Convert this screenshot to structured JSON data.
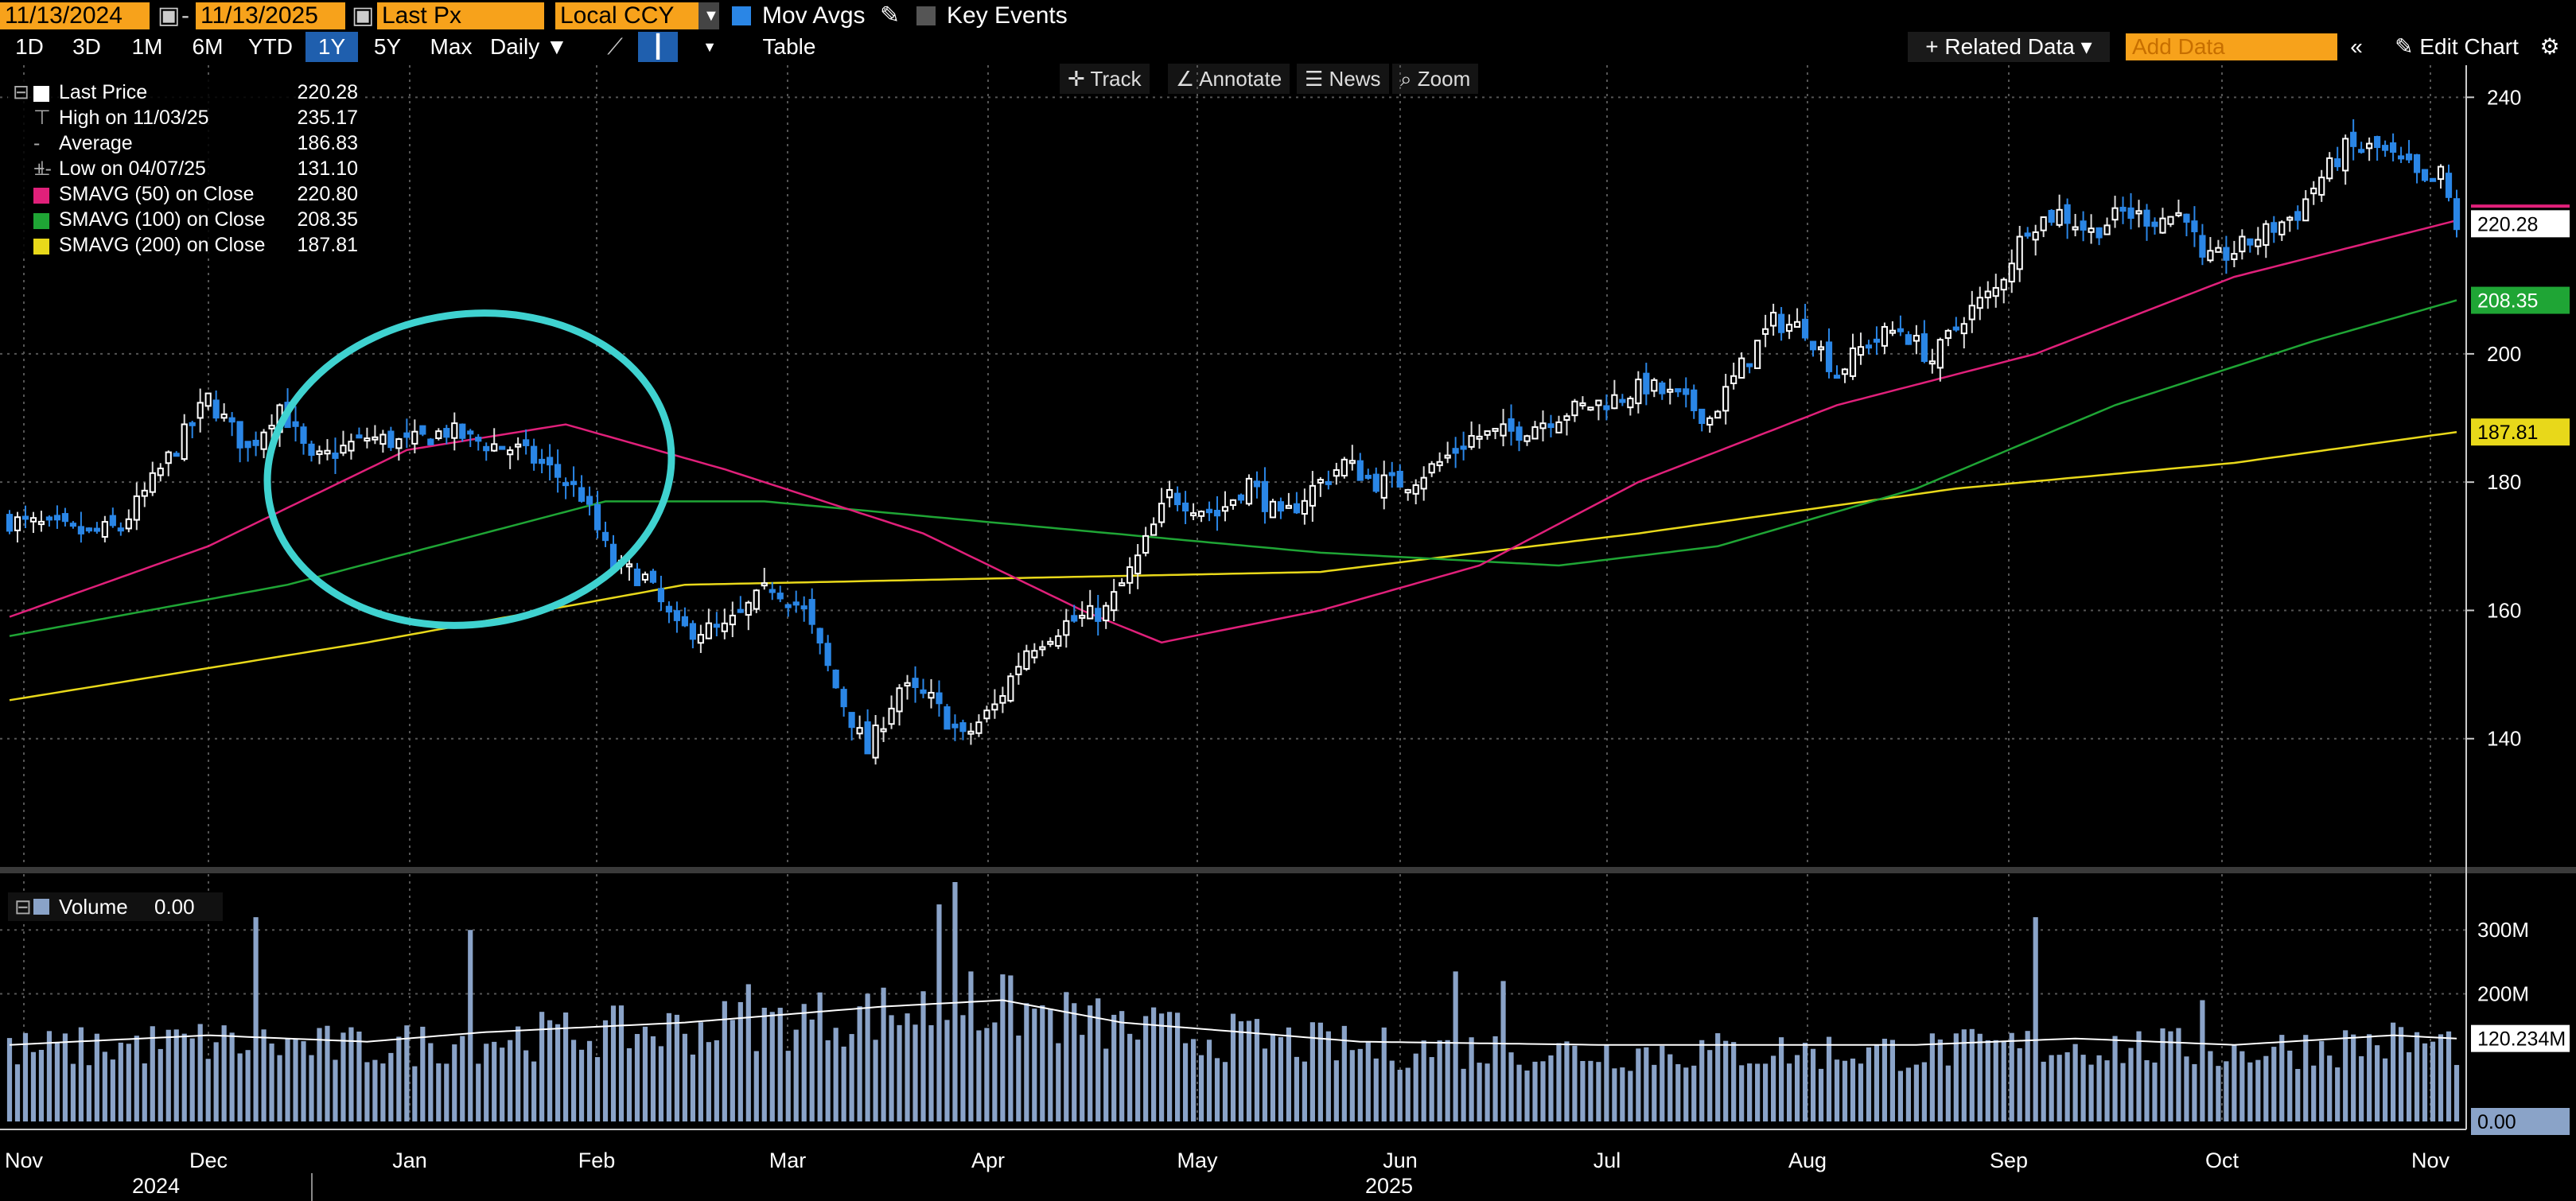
{
  "toolbar": {
    "start_date": "11/13/2024",
    "end_date": "11/13/2025",
    "date_sep": "-",
    "field": "Last Px",
    "currency": "Local CCY",
    "mov_avgs_label": "Mov Avgs",
    "key_events_label": "Key Events",
    "ranges": [
      "1D",
      "3D",
      "1M",
      "6M",
      "YTD",
      "1Y",
      "5Y",
      "Max"
    ],
    "active_range": "1Y",
    "period": "Daily",
    "table_label": "Table",
    "related_data_label": "+ Related Data",
    "add_data_placeholder": "Add Data",
    "edit_chart_label": "Edit Chart"
  },
  "chart_tools": {
    "track": "Track",
    "annotate": "Annotate",
    "news": "News",
    "zoom": "Zoom"
  },
  "legend": {
    "last_price_label": "Last Price",
    "last_price_value": "220.28",
    "high_label": "High on 11/03/25",
    "high_value": "235.17",
    "average_label": "Average",
    "average_value": "186.83",
    "low_label": "Low on 04/07/25",
    "low_value": "131.10",
    "sma50_label": "SMAVG (50)  on Close",
    "sma50_value": "220.80",
    "sma100_label": "SMAVG (100)  on Close",
    "sma100_value": "208.35",
    "sma200_label": "SMAVG (200)  on Close",
    "sma200_value": "187.81",
    "volume_label": "Volume",
    "volume_value": "0.00"
  },
  "colors": {
    "sma50": "#e0207a",
    "sma100": "#1fa535",
    "sma200": "#e8d81a",
    "up": "#ffffff",
    "down": "#2a86e6",
    "volume": "#8aa3c8",
    "annotation": "#3fd2d0"
  },
  "chart_data": {
    "type": "candlestick",
    "price_axis": {
      "ylim": [
        120,
        245
      ],
      "ticks": [
        140,
        160,
        180,
        200,
        240
      ]
    },
    "volume_axis": {
      "ylim": [
        0,
        380
      ],
      "unit": "M",
      "ticks": [
        "300M",
        "200M",
        "0.00"
      ]
    },
    "x_ticks": [
      "Nov",
      "Dec",
      "Jan",
      "Feb",
      "Mar",
      "Apr",
      "May",
      "Jun",
      "Jul",
      "Aug",
      "Sep",
      "Oct",
      "Nov"
    ],
    "year_labels": [
      "2024",
      "2025"
    ],
    "last_price_tag": "220.28",
    "sma100_tag": "208.35",
    "sma200_tag": "187.81",
    "volume_avg_tag": "120.234M",
    "volume_zero_tag": "0.00",
    "close_anchors": [
      [
        0,
        174
      ],
      [
        10,
        172
      ],
      [
        14,
        173
      ],
      [
        18,
        180
      ],
      [
        25,
        193
      ],
      [
        30,
        185
      ],
      [
        34,
        192
      ],
      [
        38,
        183
      ],
      [
        45,
        187
      ],
      [
        50,
        186
      ],
      [
        55,
        188
      ],
      [
        60,
        186
      ],
      [
        64,
        185
      ],
      [
        68,
        182
      ],
      [
        72,
        178
      ],
      [
        76,
        167
      ],
      [
        80,
        165
      ],
      [
        84,
        157
      ],
      [
        90,
        157
      ],
      [
        96,
        164
      ],
      [
        100,
        160
      ],
      [
        104,
        148
      ],
      [
        108,
        138
      ],
      [
        112,
        148
      ],
      [
        116,
        146
      ],
      [
        120,
        140
      ],
      [
        124,
        145
      ],
      [
        128,
        154
      ],
      [
        133,
        158
      ],
      [
        138,
        160
      ],
      [
        142,
        168
      ],
      [
        146,
        178
      ],
      [
        152,
        175
      ],
      [
        156,
        180
      ],
      [
        160,
        174
      ],
      [
        164,
        179
      ],
      [
        168,
        183
      ],
      [
        172,
        180
      ],
      [
        176,
        180
      ],
      [
        180,
        183
      ],
      [
        184,
        187
      ],
      [
        190,
        188
      ],
      [
        196,
        191
      ],
      [
        202,
        193
      ],
      [
        206,
        195
      ],
      [
        210,
        193
      ],
      [
        214,
        190
      ],
      [
        218,
        198
      ],
      [
        222,
        205
      ],
      [
        226,
        204
      ],
      [
        230,
        197
      ],
      [
        234,
        202
      ],
      [
        238,
        204
      ],
      [
        242,
        199
      ],
      [
        246,
        206
      ],
      [
        250,
        210
      ],
      [
        254,
        220
      ],
      [
        258,
        222
      ],
      [
        262,
        219
      ],
      [
        266,
        222
      ],
      [
        270,
        221
      ],
      [
        274,
        222
      ],
      [
        276,
        214
      ],
      [
        280,
        216
      ],
      [
        284,
        219
      ],
      [
        288,
        222
      ],
      [
        290,
        226
      ],
      [
        294,
        232
      ],
      [
        298,
        232
      ],
      [
        302,
        229
      ],
      [
        304,
        226
      ],
      [
        306,
        228
      ],
      [
        308,
        220
      ]
    ],
    "sma50_anchors": [
      [
        0,
        159
      ],
      [
        25,
        170
      ],
      [
        50,
        185
      ],
      [
        70,
        189
      ],
      [
        90,
        182
      ],
      [
        115,
        172
      ],
      [
        135,
        160
      ],
      [
        145,
        155
      ],
      [
        165,
        160
      ],
      [
        185,
        167
      ],
      [
        205,
        180
      ],
      [
        230,
        192
      ],
      [
        255,
        200
      ],
      [
        280,
        212
      ],
      [
        308,
        220.8
      ]
    ],
    "sma100_anchors": [
      [
        0,
        156
      ],
      [
        35,
        164
      ],
      [
        75,
        177
      ],
      [
        95,
        177
      ],
      [
        130,
        173
      ],
      [
        165,
        169
      ],
      [
        195,
        167
      ],
      [
        215,
        170
      ],
      [
        240,
        179
      ],
      [
        265,
        192
      ],
      [
        290,
        202
      ],
      [
        308,
        208.35
      ]
    ],
    "sma200_anchors": [
      [
        0,
        146
      ],
      [
        45,
        155
      ],
      [
        85,
        164
      ],
      [
        125,
        165
      ],
      [
        165,
        166
      ],
      [
        205,
        172
      ],
      [
        245,
        179
      ],
      [
        280,
        183
      ],
      [
        308,
        187.81
      ]
    ],
    "volume_anchors": [
      [
        0,
        110
      ],
      [
        25,
        125
      ],
      [
        45,
        115
      ],
      [
        60,
        130
      ],
      [
        85,
        145
      ],
      [
        110,
        170
      ],
      [
        125,
        180
      ],
      [
        140,
        145
      ],
      [
        170,
        115
      ],
      [
        200,
        110
      ],
      [
        240,
        110
      ],
      [
        260,
        120
      ],
      [
        280,
        110
      ],
      [
        300,
        125
      ],
      [
        308,
        120
      ]
    ],
    "volume_spikes": [
      [
        31,
        320
      ],
      [
        58,
        300
      ],
      [
        93,
        215
      ],
      [
        117,
        340
      ],
      [
        119,
        375
      ],
      [
        121,
        235
      ],
      [
        255,
        320
      ],
      [
        276,
        190
      ],
      [
        182,
        235
      ],
      [
        188,
        220
      ]
    ]
  }
}
